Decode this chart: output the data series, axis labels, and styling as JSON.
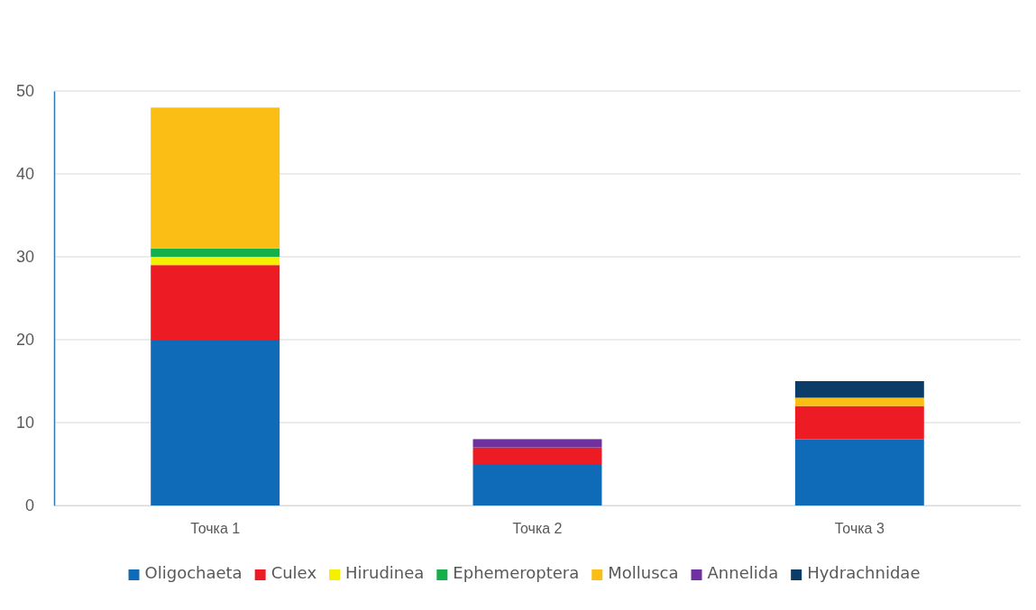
{
  "chart_data": {
    "type": "bar",
    "stacked": true,
    "categories": [
      "Точка 1",
      "Точка 2",
      "Точка 3"
    ],
    "series": [
      {
        "name": "Oligochaeta",
        "color": "#0f6bb8",
        "values": [
          20,
          5,
          8
        ]
      },
      {
        "name": "Culex",
        "color": "#ed1c24",
        "values": [
          9,
          2,
          4
        ]
      },
      {
        "name": "Hirudinea",
        "color": "#f5f000",
        "values": [
          1,
          0,
          0
        ]
      },
      {
        "name": "Ephemeroptera",
        "color": "#14b04c",
        "values": [
          1,
          0,
          0
        ]
      },
      {
        "name": "Mollusca",
        "color": "#fbbe14",
        "values": [
          17,
          0,
          1
        ]
      },
      {
        "name": "Annelida",
        "color": "#7030a0",
        "values": [
          0,
          1,
          0
        ]
      },
      {
        "name": "Hydrachnidae",
        "color": "#0b3c68",
        "values": [
          0,
          0,
          2
        ]
      }
    ],
    "ylim": [
      0,
      50
    ],
    "yticks": [
      0,
      10,
      20,
      30,
      40,
      50
    ],
    "grid": "y",
    "legend": "bottom"
  }
}
